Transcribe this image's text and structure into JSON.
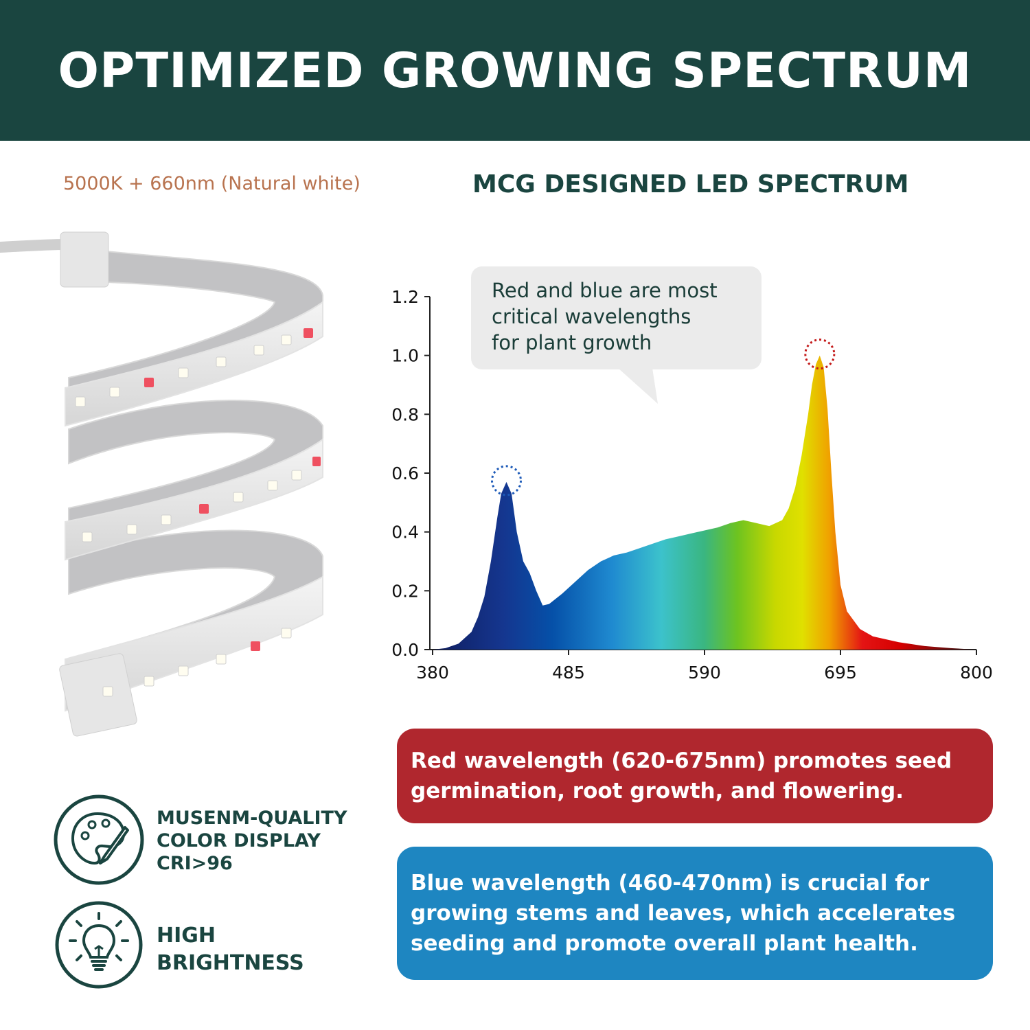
{
  "header": {
    "title": "OPTIMIZED GROWING SPECTRUM"
  },
  "subtitle": "5000K + 660nm (Natural white)",
  "spectrum_title": "MCG DESIGNED LED SPECTRUM",
  "callout": {
    "lines": [
      "Red and blue are most",
      "critical wavelengths",
      "for plant growth"
    ]
  },
  "boxes": {
    "red": {
      "lines": [
        "Red wavelength (620-675nm) promotes seed",
        "germination, root growth, and flowering."
      ],
      "color": "#b0272e"
    },
    "blue": {
      "lines": [
        "Blue wavelength (460-470nm) is crucial for",
        "growing stems and leaves, which accelerates",
        "seeding and promote overall plant health."
      ],
      "color": "#1e86c1"
    }
  },
  "features": [
    {
      "icon": "palette-icon",
      "lines": [
        "MUSENM-QUALITY",
        "COLOR DISPLAY",
        "CRI>96"
      ]
    },
    {
      "icon": "lightbulb-icon",
      "lines": [
        "HIGH",
        "BRIGHTNESS"
      ]
    }
  ],
  "colors": {
    "brand": "#1a4540",
    "accent_text": "#b8734f"
  },
  "chart_data": {
    "type": "area",
    "title": "MCG DESIGNED LED SPECTRUM",
    "xlabel": "",
    "ylabel": "",
    "xlim": [
      380,
      800
    ],
    "ylim": [
      0,
      1.2
    ],
    "x_ticks": [
      380,
      485,
      590,
      695,
      800
    ],
    "y_ticks": [
      "0.0",
      "0.2",
      "0.4",
      "0.6",
      "0.8",
      "1.0",
      "1.2"
    ],
    "peaks": [
      {
        "x": 437,
        "y": 0.57,
        "color": "blue"
      },
      {
        "x": 679,
        "y": 1.0,
        "color": "red"
      }
    ],
    "series": [
      {
        "name": "Spectrum",
        "x": [
          380,
          390,
          400,
          410,
          415,
          420,
          425,
          430,
          433,
          437,
          441,
          445,
          450,
          455,
          460,
          465,
          470,
          480,
          490,
          500,
          510,
          520,
          530,
          540,
          550,
          560,
          570,
          580,
          590,
          600,
          610,
          620,
          630,
          640,
          650,
          655,
          660,
          665,
          670,
          673,
          676,
          679,
          682,
          685,
          688,
          691,
          695,
          700,
          710,
          720,
          740,
          760,
          780,
          800
        ],
        "y": [
          0.0,
          0.005,
          0.02,
          0.06,
          0.11,
          0.18,
          0.3,
          0.45,
          0.53,
          0.57,
          0.53,
          0.4,
          0.3,
          0.26,
          0.2,
          0.15,
          0.155,
          0.19,
          0.23,
          0.27,
          0.3,
          0.32,
          0.33,
          0.345,
          0.36,
          0.375,
          0.385,
          0.395,
          0.405,
          0.415,
          0.43,
          0.44,
          0.43,
          0.42,
          0.44,
          0.48,
          0.55,
          0.66,
          0.8,
          0.9,
          0.97,
          1.0,
          0.96,
          0.82,
          0.6,
          0.4,
          0.22,
          0.13,
          0.07,
          0.045,
          0.025,
          0.012,
          0.005,
          0.0
        ]
      }
    ]
  }
}
